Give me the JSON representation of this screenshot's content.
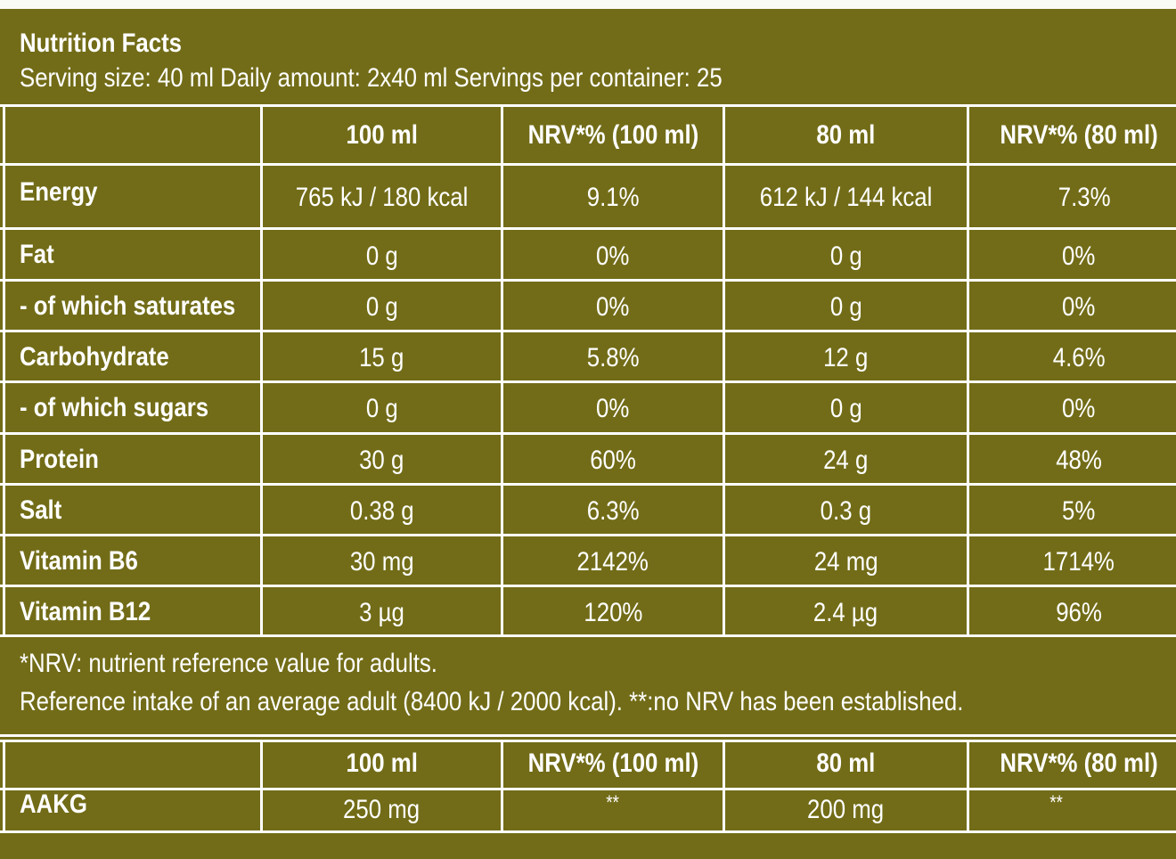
{
  "header": {
    "title": "Nutrition Facts",
    "serving_line": "Serving size: 40 ml  Daily amount: 2x40 ml  Servings per container: 25"
  },
  "table": {
    "columns": [
      "",
      "100 ml",
      "NRV*% (100 ml)",
      "80 ml",
      "NRV*% (80 ml)"
    ],
    "rows": [
      {
        "name": "Energy",
        "v100": "765 kJ / 180 kcal",
        "nrv100": "9.1%",
        "v80": "612 kJ / 144 kcal",
        "nrv80": "7.3%"
      },
      {
        "name": "Fat",
        "v100": "0 g",
        "nrv100": "0%",
        "v80": "0 g",
        "nrv80": "0%"
      },
      {
        "name": "- of which saturates",
        "v100": "0 g",
        "nrv100": "0%",
        "v80": "0 g",
        "nrv80": "0%"
      },
      {
        "name": "Carbohydrate",
        "v100": "15 g",
        "nrv100": "5.8%",
        "v80": "12 g",
        "nrv80": "4.6%"
      },
      {
        "name": "- of which sugars",
        "v100": "0 g",
        "nrv100": "0%",
        "v80": "0 g",
        "nrv80": "0%"
      },
      {
        "name": "Protein",
        "v100": "30 g",
        "nrv100": "60%",
        "v80": "24 g",
        "nrv80": "48%"
      },
      {
        "name": "Salt",
        "v100": "0.38 g",
        "nrv100": "6.3%",
        "v80": "0.3 g",
        "nrv80": "5%"
      },
      {
        "name": "Vitamin B6",
        "v100": "30 mg",
        "nrv100": "2142%",
        "v80": "24 mg",
        "nrv80": "1714%"
      },
      {
        "name": "Vitamin B12",
        "v100": "3 µg",
        "nrv100": "120%",
        "v80": "2.4 µg",
        "nrv80": "96%"
      }
    ]
  },
  "footnote": {
    "line1": "*NRV: nutrient reference value for adults.",
    "line2": "Reference intake of an average adult (8400 kJ / 2000 kcal). **:no NRV has been established."
  },
  "table2": {
    "columns": [
      "",
      "100 ml",
      "NRV*% (100 ml)",
      "80 ml",
      "NRV*% (80 ml)"
    ],
    "rows": [
      {
        "name": "AAKG",
        "v100": "250 mg",
        "nrv100": "**",
        "v80": "200 mg",
        "nrv80": "**"
      }
    ]
  },
  "colors": {
    "panel": "#726c18",
    "lines": "#ffffff",
    "page": "#fbfbf6"
  }
}
